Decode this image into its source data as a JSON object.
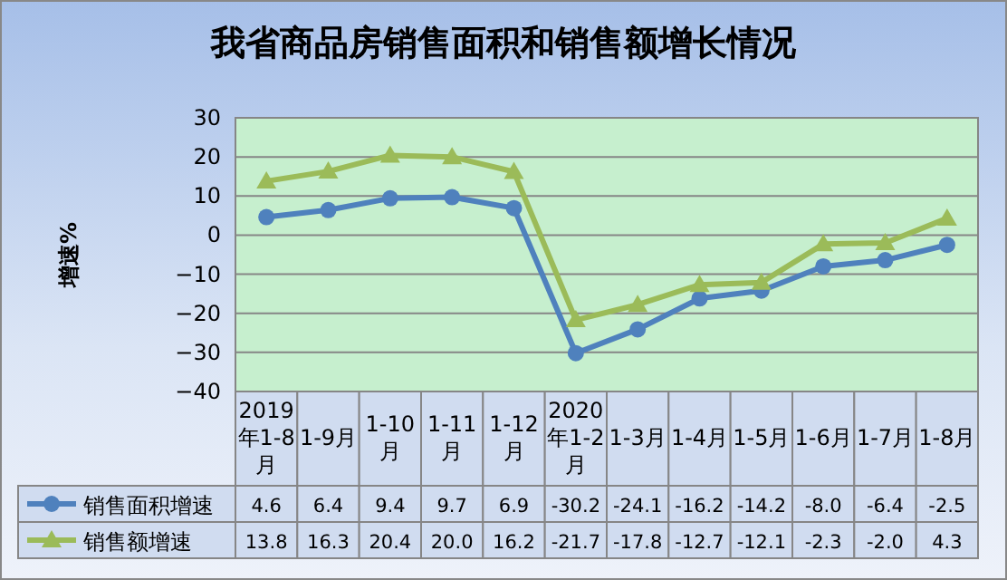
{
  "chart_data": {
    "type": "line",
    "title": "我省商品房销售面积和销售额增长情况",
    "ylabel": "增速%",
    "categories": [
      "2019年1-8月",
      "1-9月",
      "1-10月",
      "1-11月",
      "1-12月",
      "2020年1-2月",
      "1-3月",
      "1-4月",
      "1-5月",
      "1-6月",
      "1-7月",
      "1-8月"
    ],
    "series": [
      {
        "name": "销售面积增速",
        "color": "#4f81bd",
        "marker": "circle",
        "values": [
          4.6,
          6.4,
          9.4,
          9.7,
          6.9,
          -30.2,
          -24.1,
          -16.2,
          -14.2,
          -8.0,
          -6.4,
          -2.5
        ],
        "value_labels": [
          "4.6",
          "6.4",
          "9.4",
          "9.7",
          "6.9",
          "-30.2",
          "-24.1",
          "-16.2",
          "-14.2",
          "-8.0",
          "-6.4",
          "-2.5"
        ]
      },
      {
        "name": "销售额增速",
        "color": "#9bbb59",
        "marker": "triangle",
        "values": [
          13.8,
          16.3,
          20.4,
          20.0,
          16.2,
          -21.7,
          -17.8,
          -12.7,
          -12.1,
          -2.3,
          -2.0,
          4.3
        ],
        "value_labels": [
          "13.8",
          "16.3",
          "20.4",
          "20.0",
          "16.2",
          "-21.7",
          "-17.8",
          "-12.7",
          "-12.1",
          "-2.3",
          "-2.0",
          "4.3"
        ]
      }
    ],
    "ylim": [
      -40,
      30
    ],
    "yticks": [
      -40,
      -30,
      -20,
      -10,
      0,
      10,
      20,
      30
    ],
    "grid": "y",
    "legend": "bottom left",
    "line_style": "solid"
  }
}
